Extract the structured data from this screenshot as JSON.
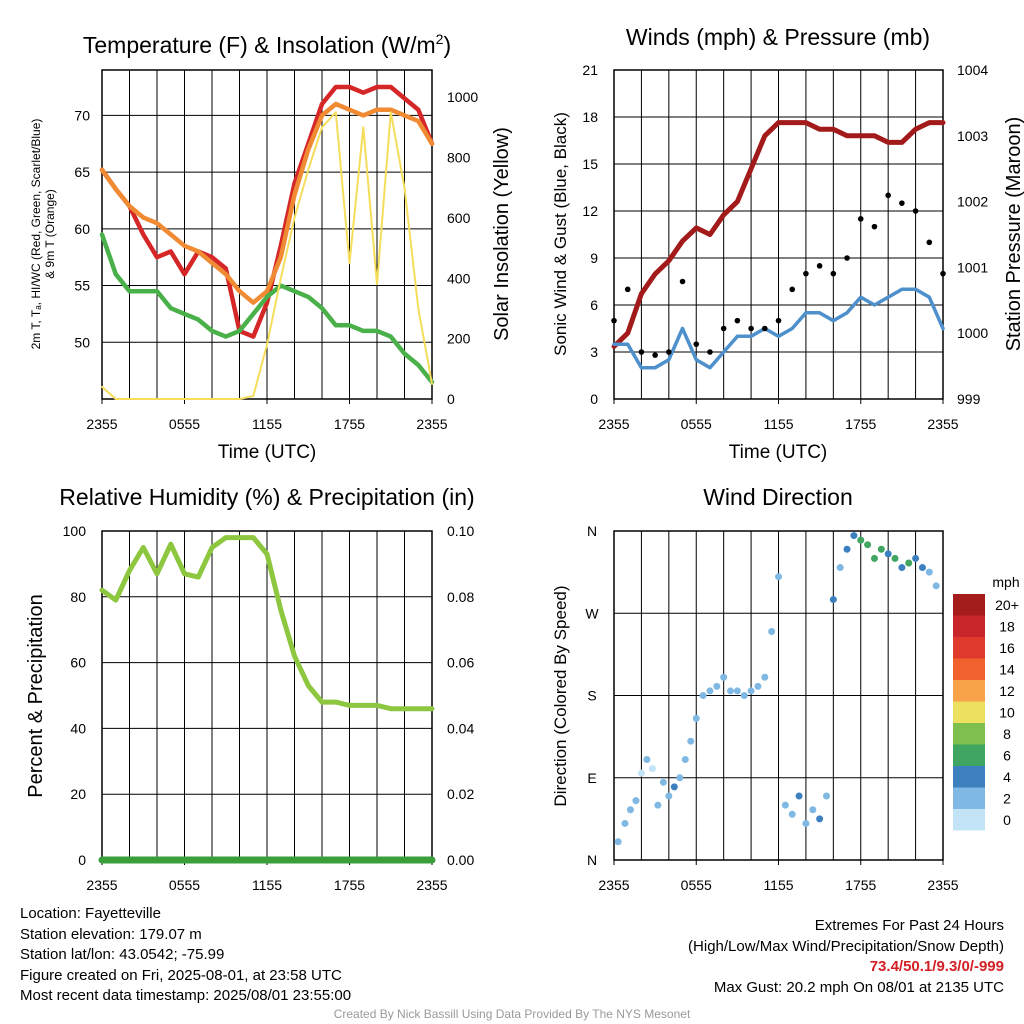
{
  "chart_data": [
    {
      "type": "line",
      "title": "Temperature (F) & Insolation (W/m²)",
      "title_main": "Temperature (F) & Insolation (W/m",
      "title_sup": "2",
      "title_end": ")",
      "ylabel_line1": "2m T, Tₐ, HI/WC (Red, Green, Scarlet/Blue)",
      "ylabel_line2": "& 9m T (Orange)",
      "y2label": "Solar Insolation (Yellow)",
      "xlabel": "Time (UTC)",
      "xticks": [
        "2355",
        "0555",
        "1155",
        "1755",
        "2355"
      ],
      "ylim": [
        45,
        74
      ],
      "yticks": [
        50,
        55,
        60,
        65,
        70
      ],
      "y2lim": [
        0,
        1090
      ],
      "y2ticks": [
        0,
        200,
        400,
        600,
        800,
        1000
      ],
      "x_hours": [
        0,
        1,
        2,
        3,
        4,
        5,
        6,
        7,
        8,
        9,
        10,
        11,
        12,
        13,
        14,
        15,
        16,
        17,
        18,
        19,
        20,
        21,
        22,
        23,
        24
      ],
      "series": [
        {
          "name": "2m T",
          "color": "#d62728",
          "axis": "left",
          "values": [
            65.2,
            63.5,
            62.0,
            59.5,
            57.5,
            58.0,
            56.0,
            58.0,
            57.5,
            56.5,
            51.0,
            50.5,
            53.5,
            58.5,
            64.0,
            67.5,
            71.0,
            72.5,
            72.5,
            72.0,
            72.5,
            72.5,
            71.5,
            70.5,
            67.5
          ]
        },
        {
          "name": "9m T",
          "color": "#f08a33",
          "axis": "left",
          "values": [
            65.2,
            63.5,
            62.0,
            61.0,
            60.5,
            59.5,
            58.5,
            58.0,
            57.0,
            56.0,
            54.5,
            53.5,
            54.5,
            57.5,
            63.0,
            67.0,
            70.0,
            71.0,
            70.5,
            70.0,
            70.5,
            70.5,
            70.0,
            69.5,
            67.5
          ]
        },
        {
          "name": "Td",
          "color": "#4ab04a",
          "axis": "left",
          "values": [
            59.5,
            56.0,
            54.5,
            54.5,
            54.5,
            53.0,
            52.5,
            52.0,
            51.0,
            50.5,
            51.0,
            52.5,
            54.0,
            55.0,
            54.5,
            54.0,
            53.0,
            51.5,
            51.5,
            51.0,
            51.0,
            50.5,
            49.0,
            48.0,
            46.5
          ]
        },
        {
          "name": "Solar",
          "color": "#f5dd5c",
          "axis": "right",
          "values": [
            40,
            0,
            0,
            0,
            0,
            0,
            0,
            0,
            0,
            0,
            0,
            10,
            180,
            400,
            600,
            760,
            900,
            950,
            450,
            900,
            380,
            950,
            700,
            300,
            50
          ]
        }
      ]
    },
    {
      "type": "line",
      "title": "Winds (mph) & Pressure (mb)",
      "ylabel": "Sonic Wind & Gust (Blue, Black)",
      "y2label": "Station Pressure (Maroon)",
      "xlabel": "Time (UTC)",
      "xticks": [
        "2355",
        "0555",
        "1155",
        "1755",
        "2355"
      ],
      "ylim": [
        0,
        21
      ],
      "yticks": [
        0,
        3,
        6,
        9,
        12,
        15,
        18,
        21
      ],
      "y2lim": [
        999,
        1004
      ],
      "y2ticks": [
        999,
        1000,
        1001,
        1002,
        1003,
        1004
      ],
      "x_hours": [
        0,
        1,
        2,
        3,
        4,
        5,
        6,
        7,
        8,
        9,
        10,
        11,
        12,
        13,
        14,
        15,
        16,
        17,
        18,
        19,
        20,
        21,
        22,
        23,
        24
      ],
      "series": [
        {
          "name": "Pressure",
          "color": "#a31a1a",
          "axis": "right",
          "values": [
            999.8,
            1000.0,
            1000.6,
            1000.9,
            1001.1,
            1001.4,
            1001.6,
            1001.5,
            1001.8,
            1002.0,
            1002.5,
            1003.0,
            1003.2,
            1003.2,
            1003.2,
            1003.1,
            1003.1,
            1003.0,
            1003.0,
            1003.0,
            1002.9,
            1002.9,
            1003.1,
            1003.2,
            1003.2
          ]
        },
        {
          "name": "Wind",
          "color": "#4d90cc",
          "axis": "left",
          "values": [
            3.5,
            3.5,
            2.0,
            2.0,
            2.5,
            4.5,
            2.5,
            2.0,
            3.0,
            4.0,
            4.0,
            4.5,
            4.0,
            4.5,
            5.5,
            5.5,
            5.0,
            5.5,
            6.5,
            6.0,
            6.5,
            7.0,
            7.0,
            6.5,
            4.5
          ]
        },
        {
          "name": "Gust",
          "color": "#000000",
          "axis": "left",
          "style": "dots",
          "values": [
            5.0,
            7.0,
            3.0,
            2.8,
            3.0,
            7.5,
            3.5,
            3.0,
            4.5,
            5.0,
            4.5,
            4.5,
            5.0,
            7.0,
            8.0,
            8.5,
            8.0,
            9.0,
            11.5,
            11.0,
            13.0,
            12.5,
            12.0,
            10.0,
            8.0
          ]
        }
      ]
    },
    {
      "type": "line",
      "title": "Relative Humidity (%) & Precipitation (in)",
      "ylabel": "Percent & Precipitation",
      "xticks": [
        "2355",
        "0555",
        "1155",
        "1755",
        "2355"
      ],
      "ylim": [
        0,
        100
      ],
      "yticks": [
        0,
        20,
        40,
        60,
        80,
        100
      ],
      "y2lim": [
        0,
        0.1
      ],
      "y2ticks": [
        "0.00",
        "0.02",
        "0.04",
        "0.06",
        "0.08",
        "0.10"
      ],
      "x_hours": [
        0,
        1,
        2,
        3,
        4,
        5,
        6,
        7,
        8,
        9,
        10,
        11,
        12,
        13,
        14,
        15,
        16,
        17,
        18,
        19,
        20,
        21,
        22,
        23,
        24
      ],
      "series": [
        {
          "name": "RH",
          "color": "#8dc63f",
          "axis": "left",
          "values": [
            82,
            79,
            88,
            95,
            87,
            96,
            87,
            86,
            95,
            98,
            98,
            98,
            93,
            76,
            62,
            53,
            48,
            48,
            47,
            47,
            47,
            46,
            46,
            46,
            46
          ]
        },
        {
          "name": "Precipitation",
          "color": "#3a9f3a",
          "axis": "right",
          "values": [
            0,
            0,
            0,
            0,
            0,
            0,
            0,
            0,
            0,
            0,
            0,
            0,
            0,
            0,
            0,
            0,
            0,
            0,
            0,
            0,
            0,
            0,
            0,
            0,
            0
          ]
        }
      ]
    },
    {
      "type": "scatter",
      "title": "Wind Direction",
      "ylabel": "Direction (Colored By Speed)",
      "xticks": [
        "2355",
        "0555",
        "1155",
        "1755",
        "2355"
      ],
      "yticks": [
        "N",
        "E",
        "S",
        "W",
        "N"
      ],
      "ylim": [
        0,
        360
      ],
      "colorbar_unit": "mph",
      "colorbar": [
        {
          "label": "20+",
          "color": "#a51c1c"
        },
        {
          "label": "18",
          "color": "#c8262a"
        },
        {
          "label": "16",
          "color": "#e0392e"
        },
        {
          "label": "14",
          "color": "#f0622e"
        },
        {
          "label": "12",
          "color": "#f8a24a"
        },
        {
          "label": "10",
          "color": "#ece060"
        },
        {
          "label": "8",
          "color": "#7fbf4d"
        },
        {
          "label": "6",
          "color": "#3fa560"
        },
        {
          "label": "4",
          "color": "#3d80c0"
        },
        {
          "label": "2",
          "color": "#7fb9e3"
        },
        {
          "label": "0",
          "color": "#c3e4f6"
        }
      ],
      "points": [
        [
          0.3,
          20,
          3
        ],
        [
          0.8,
          40,
          3
        ],
        [
          1.2,
          55,
          2
        ],
        [
          1.6,
          65,
          3
        ],
        [
          2.0,
          95,
          1
        ],
        [
          2.4,
          110,
          2
        ],
        [
          2.8,
          100,
          1
        ],
        [
          3.2,
          60,
          2
        ],
        [
          3.6,
          85,
          3
        ],
        [
          4.0,
          70,
          3
        ],
        [
          4.4,
          80,
          4
        ],
        [
          4.8,
          90,
          3
        ],
        [
          5.2,
          110,
          2
        ],
        [
          5.6,
          130,
          3
        ],
        [
          6.0,
          155,
          3
        ],
        [
          6.5,
          180,
          3
        ],
        [
          7.0,
          185,
          2
        ],
        [
          7.5,
          190,
          3
        ],
        [
          8.0,
          200,
          3
        ],
        [
          8.5,
          185,
          3
        ],
        [
          9.0,
          185,
          3
        ],
        [
          9.5,
          180,
          3
        ],
        [
          10.0,
          185,
          3
        ],
        [
          10.5,
          190,
          3
        ],
        [
          11.0,
          200,
          2
        ],
        [
          11.5,
          250,
          2
        ],
        [
          12.0,
          310,
          2
        ],
        [
          12.5,
          60,
          3
        ],
        [
          13.0,
          50,
          3
        ],
        [
          13.5,
          70,
          4
        ],
        [
          14.0,
          40,
          3
        ],
        [
          14.5,
          55,
          3
        ],
        [
          15.0,
          45,
          5
        ],
        [
          15.5,
          70,
          3
        ],
        [
          16.0,
          285,
          4
        ],
        [
          16.5,
          320,
          3
        ],
        [
          17.0,
          340,
          5
        ],
        [
          17.5,
          355,
          4
        ],
        [
          18.0,
          350,
          6
        ],
        [
          18.5,
          345,
          7
        ],
        [
          19.0,
          330,
          6
        ],
        [
          19.5,
          340,
          7
        ],
        [
          20.0,
          335,
          5
        ],
        [
          20.5,
          330,
          6
        ],
        [
          21.0,
          320,
          4
        ],
        [
          21.5,
          325,
          7
        ],
        [
          22.0,
          330,
          5
        ],
        [
          22.5,
          320,
          4
        ],
        [
          23.0,
          315,
          3
        ],
        [
          23.5,
          300,
          3
        ]
      ]
    }
  ],
  "station": {
    "location": "Location: Fayetteville",
    "elevation": "Station elevation: 179.07 m",
    "latlon": "Station lat/lon: 43.0542; -75.99",
    "created": "Figure created on Fri, 2025-08-01, at 23:58 UTC",
    "recent": "Most recent data timestamp: 2025/08/01 23:55:00"
  },
  "extremes": {
    "title": "Extremes For Past 24 Hours",
    "legend": "(High/Low/Max Wind/Precipitation/Snow Depth)",
    "values": "73.4/50.1/9.3/0/-999",
    "gust": "Max Gust: 20.2 mph On 08/01 at 2135 UTC"
  },
  "credit": "Created By Nick Bassill Using Data Provided By The NYS Mesonet"
}
